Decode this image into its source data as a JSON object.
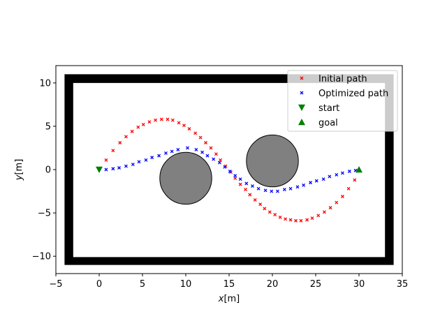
{
  "chart_data": {
    "type": "scatter",
    "xlabel": "x[m]",
    "ylabel": "y[m]",
    "xlim": [
      -5,
      35
    ],
    "ylim": [
      -12,
      12
    ],
    "x_ticks": [
      -5,
      0,
      5,
      10,
      15,
      20,
      25,
      30,
      35
    ],
    "y_ticks": [
      -10,
      -5,
      0,
      5,
      10
    ],
    "grid": false,
    "legend_position": "top-right",
    "boundary": {
      "outer": [
        -4,
        -11,
        34,
        11
      ],
      "inner": [
        -3,
        -10.1,
        33,
        10
      ],
      "color": "#000000"
    },
    "obstacles": [
      {
        "cx": 10,
        "cy": -1,
        "r": 3,
        "color": "#808080"
      },
      {
        "cx": 20,
        "cy": 1,
        "r": 3,
        "color": "#808080"
      }
    ],
    "series": [
      {
        "name": "Initial path",
        "marker": "x",
        "color": "#ff0000",
        "x": [
          0.8,
          1.6,
          2.4,
          3.1,
          3.8,
          4.5,
          5.1,
          5.8,
          6.5,
          7.2,
          7.9,
          8.5,
          9.2,
          9.8,
          10.4,
          11.1,
          11.7,
          12.3,
          12.9,
          13.5,
          14.0,
          14.6,
          15.2,
          15.7,
          16.3,
          16.9,
          17.4,
          18.0,
          18.6,
          19.1,
          19.7,
          20.3,
          20.9,
          21.5,
          22.1,
          22.7,
          23.3,
          24.0,
          24.6,
          25.3,
          26.0,
          26.7,
          27.4,
          28.1,
          28.8,
          29.5
        ],
        "y": [
          1.1,
          2.2,
          3.1,
          3.8,
          4.4,
          4.9,
          5.2,
          5.5,
          5.7,
          5.8,
          5.8,
          5.7,
          5.4,
          5.1,
          4.7,
          4.2,
          3.7,
          3.1,
          2.5,
          1.8,
          1.1,
          0.4,
          -0.3,
          -1.0,
          -1.7,
          -2.3,
          -2.9,
          -3.5,
          -4.0,
          -4.5,
          -4.9,
          -5.2,
          -5.5,
          -5.7,
          -5.8,
          -5.9,
          -5.9,
          -5.8,
          -5.6,
          -5.3,
          -4.9,
          -4.4,
          -3.8,
          -3.1,
          -2.2,
          -1.2
        ]
      },
      {
        "name": "Optimized path",
        "marker": "x",
        "color": "#0000ff",
        "x": [
          0.8,
          1.6,
          2.3,
          3.1,
          3.9,
          4.6,
          5.4,
          6.1,
          6.9,
          7.7,
          8.4,
          9.1,
          10.2,
          11.2,
          11.9,
          12.5,
          13.2,
          13.9,
          14.5,
          15.1,
          15.7,
          16.3,
          17.0,
          17.7,
          18.4,
          19.2,
          19.9,
          20.6,
          21.4,
          22.1,
          22.9,
          23.6,
          24.4,
          25.1,
          25.9,
          26.6,
          27.4,
          28.1,
          28.9,
          29.6
        ],
        "y": [
          0.0,
          0.1,
          0.2,
          0.4,
          0.6,
          0.9,
          1.1,
          1.4,
          1.6,
          1.9,
          2.1,
          2.3,
          2.5,
          2.3,
          2.0,
          1.6,
          1.2,
          0.8,
          0.3,
          -0.2,
          -0.7,
          -1.1,
          -1.6,
          -1.9,
          -2.2,
          -2.4,
          -2.5,
          -2.5,
          -2.3,
          -2.2,
          -2.0,
          -1.8,
          -1.5,
          -1.3,
          -1.1,
          -0.8,
          -0.6,
          -0.4,
          -0.2,
          -0.1
        ]
      },
      {
        "name": "start",
        "marker": "v",
        "color": "#008000",
        "x": [
          0
        ],
        "y": [
          0
        ]
      },
      {
        "name": "goal",
        "marker": "^",
        "color": "#008000",
        "x": [
          30
        ],
        "y": [
          0
        ]
      }
    ]
  }
}
